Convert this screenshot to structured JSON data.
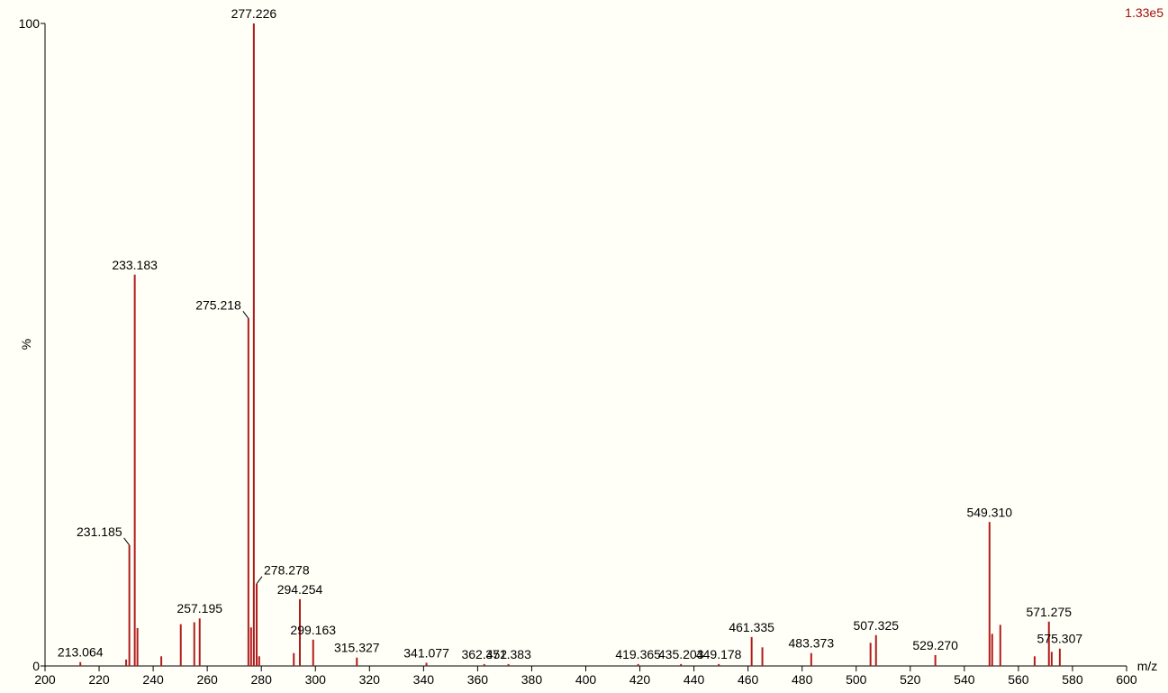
{
  "chart_data": {
    "type": "spectrum",
    "xlabel": "m/z",
    "ylabel": "%",
    "scale_note": "1.33e5",
    "xlim": [
      200,
      600
    ],
    "ylim": [
      0,
      100
    ],
    "xticks": [
      200,
      220,
      240,
      260,
      280,
      300,
      320,
      340,
      360,
      380,
      400,
      420,
      440,
      460,
      480,
      500,
      520,
      540,
      560,
      580,
      600
    ],
    "yticks": [
      0,
      100
    ],
    "color": "#b01c1c",
    "x": [
      213.064,
      230.0,
      231.185,
      233.183,
      234.18,
      243.0,
      250.2,
      255.2,
      257.195,
      275.218,
      276.2,
      277.226,
      278.278,
      279.2,
      292.0,
      294.254,
      299.163,
      315.327,
      341.077,
      362.452,
      371.383,
      419.365,
      435.203,
      449.178,
      461.335,
      465.3,
      483.373,
      505.3,
      507.325,
      529.27,
      549.31,
      550.3,
      553.3,
      566.0,
      571.275,
      572.3,
      575.307
    ],
    "values": [
      0.6,
      1.0,
      18.8,
      60.9,
      5.9,
      1.5,
      6.5,
      6.8,
      7.4,
      54.1,
      6.0,
      100,
      12.8,
      1.5,
      2.0,
      10.4,
      4.1,
      1.3,
      0.5,
      0.3,
      0.3,
      0.3,
      0.3,
      0.3,
      4.5,
      2.9,
      2.0,
      3.6,
      4.8,
      1.7,
      22.4,
      5.0,
      6.4,
      1.5,
      6.9,
      2.2,
      2.7
    ],
    "peak_labels": [
      "213.064",
      null,
      "231.185",
      "233.183",
      null,
      null,
      null,
      null,
      "257.195",
      "275.218",
      null,
      "277.226",
      "278.278",
      null,
      null,
      "294.254",
      "299.163",
      "315.327",
      "341.077",
      "362.452",
      "371.383",
      "419.365",
      "435.203",
      "449.178",
      "461.335",
      null,
      "483.373",
      null,
      "507.325",
      "529.270",
      "549.310",
      null,
      null,
      null,
      "571.275",
      null,
      "575.307"
    ]
  }
}
